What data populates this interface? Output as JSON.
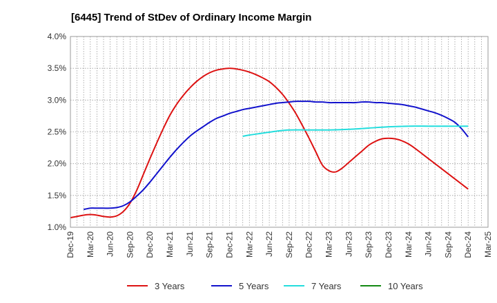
{
  "chart_data": {
    "type": "line",
    "title": "[6445]  Trend of StDev of Ordinary Income Margin",
    "x_tick_labels": [
      "Dec-19",
      "Mar-20",
      "Jun-20",
      "Sep-20",
      "Dec-20",
      "Mar-21",
      "Jun-21",
      "Sep-21",
      "Dec-21",
      "Mar-22",
      "Jun-22",
      "Sep-22",
      "Dec-22",
      "Mar-23",
      "Jun-23",
      "Sep-23",
      "Dec-23",
      "Mar-24",
      "Jun-24",
      "Sep-24",
      "Dec-24",
      "Mar-25"
    ],
    "y_tick_labels": [
      "1.0%",
      "1.5%",
      "2.0%",
      "2.5%",
      "3.0%",
      "3.5%",
      "4.0%"
    ],
    "ylim": [
      1.0,
      4.0
    ],
    "x_range": [
      "Dec-19",
      "Mar-25"
    ],
    "grid": "dotted",
    "legend_position": "bottom",
    "series": [
      {
        "name": "3 Years",
        "color": "#dd1111",
        "x": [
          "Dec-19",
          "Feb-20",
          "Mar-20",
          "Apr-20",
          "May-20",
          "Jun-20",
          "Jul-20",
          "Aug-20",
          "Sep-20",
          "Oct-20",
          "Nov-20",
          "Dec-20",
          "Jan-21",
          "Feb-21",
          "Mar-21",
          "Apr-21",
          "May-21",
          "Jun-21",
          "Jul-21",
          "Aug-21",
          "Sep-21",
          "Oct-21",
          "Nov-21",
          "Dec-21",
          "Jan-22",
          "Feb-22",
          "Mar-22",
          "Apr-22",
          "May-22",
          "Jun-22",
          "Jul-22",
          "Aug-22",
          "Sep-22",
          "Oct-22",
          "Nov-22",
          "Dec-22",
          "Jan-23",
          "Feb-23",
          "Mar-23",
          "Apr-23",
          "May-23",
          "Jun-23",
          "Jul-23",
          "Aug-23",
          "Sep-23",
          "Oct-23",
          "Nov-23",
          "Dec-23",
          "Jan-24",
          "Feb-24",
          "Mar-24",
          "Apr-24",
          "May-24",
          "Jun-24",
          "Jul-24",
          "Aug-24",
          "Sep-24",
          "Oct-24",
          "Nov-24",
          "Dec-24"
        ],
        "values": [
          1.15,
          1.19,
          1.2,
          1.19,
          1.17,
          1.16,
          1.18,
          1.25,
          1.38,
          1.58,
          1.83,
          2.08,
          2.32,
          2.55,
          2.76,
          2.93,
          3.07,
          3.19,
          3.29,
          3.37,
          3.43,
          3.47,
          3.49,
          3.5,
          3.49,
          3.47,
          3.44,
          3.4,
          3.35,
          3.29,
          3.2,
          3.09,
          2.95,
          2.79,
          2.6,
          2.4,
          2.19,
          1.98,
          1.89,
          1.87,
          1.93,
          2.02,
          2.11,
          2.2,
          2.29,
          2.35,
          2.39,
          2.4,
          2.39,
          2.36,
          2.31,
          2.24,
          2.16,
          2.08,
          2.0,
          1.92,
          1.84,
          1.76,
          1.68,
          1.6
        ]
      },
      {
        "name": "5 Years",
        "color": "#1111cc",
        "x": [
          "Feb-20",
          "Mar-20",
          "Apr-20",
          "May-20",
          "Jun-20",
          "Jul-20",
          "Aug-20",
          "Sep-20",
          "Oct-20",
          "Nov-20",
          "Dec-20",
          "Jan-21",
          "Feb-21",
          "Mar-21",
          "Apr-21",
          "May-21",
          "Jun-21",
          "Jul-21",
          "Aug-21",
          "Sep-21",
          "Oct-21",
          "Nov-21",
          "Dec-21",
          "Jan-22",
          "Feb-22",
          "Mar-22",
          "Apr-22",
          "May-22",
          "Jun-22",
          "Jul-22",
          "Aug-22",
          "Sep-22",
          "Oct-22",
          "Nov-22",
          "Dec-22",
          "Jan-23",
          "Feb-23",
          "Mar-23",
          "Apr-23",
          "May-23",
          "Jun-23",
          "Jul-23",
          "Aug-23",
          "Sep-23",
          "Oct-23",
          "Nov-23",
          "Dec-23",
          "Jan-24",
          "Feb-24",
          "Mar-24",
          "Apr-24",
          "May-24",
          "Jun-24",
          "Jul-24",
          "Aug-24",
          "Sep-24",
          "Oct-24",
          "Nov-24",
          "Dec-24"
        ],
        "values": [
          1.28,
          1.3,
          1.3,
          1.3,
          1.3,
          1.31,
          1.34,
          1.4,
          1.49,
          1.59,
          1.71,
          1.84,
          1.97,
          2.1,
          2.22,
          2.33,
          2.43,
          2.51,
          2.58,
          2.65,
          2.71,
          2.75,
          2.79,
          2.82,
          2.85,
          2.87,
          2.89,
          2.91,
          2.93,
          2.95,
          2.96,
          2.97,
          2.98,
          2.98,
          2.98,
          2.97,
          2.97,
          2.96,
          2.96,
          2.96,
          2.96,
          2.96,
          2.97,
          2.97,
          2.96,
          2.96,
          2.95,
          2.94,
          2.93,
          2.91,
          2.89,
          2.86,
          2.83,
          2.8,
          2.76,
          2.71,
          2.65,
          2.55,
          2.42
        ]
      },
      {
        "name": "7 Years",
        "color": "#22dddd",
        "x": [
          "Feb-22",
          "Mar-22",
          "May-22",
          "Jul-22",
          "Sep-22",
          "Dec-22",
          "Mar-23",
          "Jun-23",
          "Sep-23",
          "Dec-23",
          "Mar-24",
          "Jun-24",
          "Sep-24",
          "Dec-24"
        ],
        "values": [
          2.43,
          2.45,
          2.48,
          2.51,
          2.53,
          2.53,
          2.53,
          2.54,
          2.56,
          2.58,
          2.59,
          2.59,
          2.59,
          2.59
        ]
      },
      {
        "name": "10 Years",
        "color": "#118811",
        "x": [],
        "values": []
      }
    ]
  }
}
